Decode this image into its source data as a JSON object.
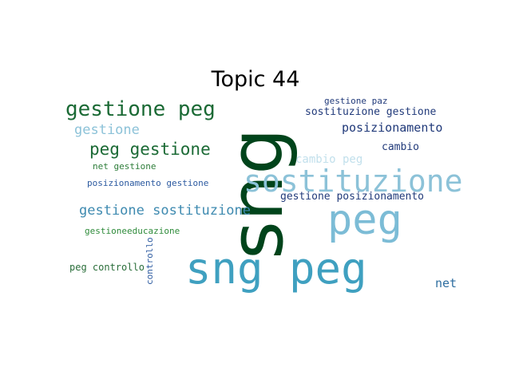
{
  "title": "Topic 44",
  "words": [
    {
      "text": "sng",
      "color": "#00441b"
    },
    {
      "text": "gestione peg",
      "color": "#1b6a35"
    },
    {
      "text": "gestione",
      "color": "#8cc2d8"
    },
    {
      "text": "peg gestione",
      "color": "#1b6a35"
    },
    {
      "text": "gestione paz",
      "color": "#213a7a"
    },
    {
      "text": "sostituzione gestione",
      "color": "#213a7a"
    },
    {
      "text": "posizionamento",
      "color": "#213a7a"
    },
    {
      "text": "cambio",
      "color": "#213a7a"
    },
    {
      "text": "cambio peg",
      "color": "#c2e0ec"
    },
    {
      "text": "net gestione",
      "color": "#2e7d3a"
    },
    {
      "text": "sostituzione",
      "color": "#8cc2d8"
    },
    {
      "text": "posizionamento gestione",
      "color": "#2c5aa0"
    },
    {
      "text": "gestione posizionamento",
      "color": "#213a7a"
    },
    {
      "text": "gestione sostituzione",
      "color": "#3e8ab0"
    },
    {
      "text": "peg",
      "color": "#7cbcd6"
    },
    {
      "text": "gestioneeducazione",
      "color": "#2e8b3a"
    },
    {
      "text": "controllo",
      "color": "#2c5aa0"
    },
    {
      "text": "peg controllo",
      "color": "#2a6e3a"
    },
    {
      "text": "sng peg",
      "color": "#3fa0c0"
    },
    {
      "text": "net",
      "color": "#2e6ea0"
    }
  ]
}
